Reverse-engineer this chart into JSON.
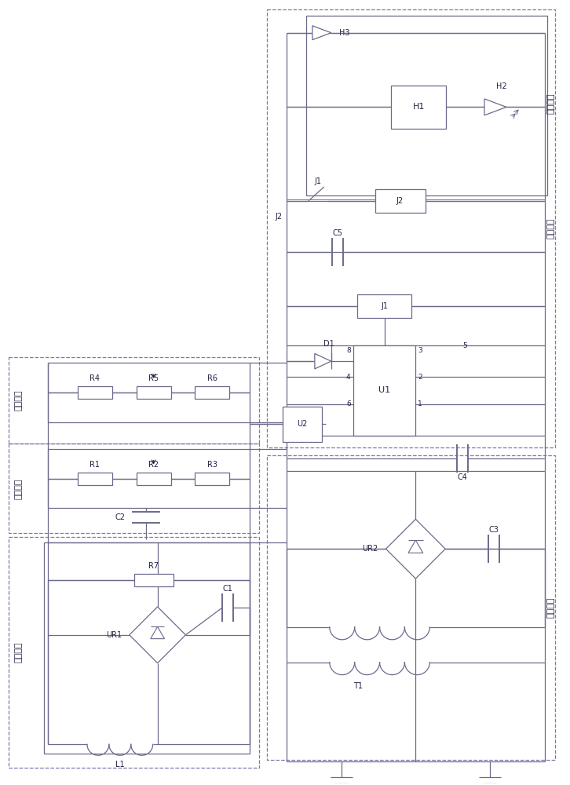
{
  "line_color": "#6a6a8a",
  "dash_color": "#7a7aaa",
  "text_color": "#222244",
  "bg_color": "#ffffff",
  "lw": 0.9,
  "modules": {
    "signal": "信号模块",
    "lower": "下限模块",
    "upper": "上限模块",
    "control": "控制模块",
    "power": "供电模块",
    "alarm": "报警模块"
  }
}
